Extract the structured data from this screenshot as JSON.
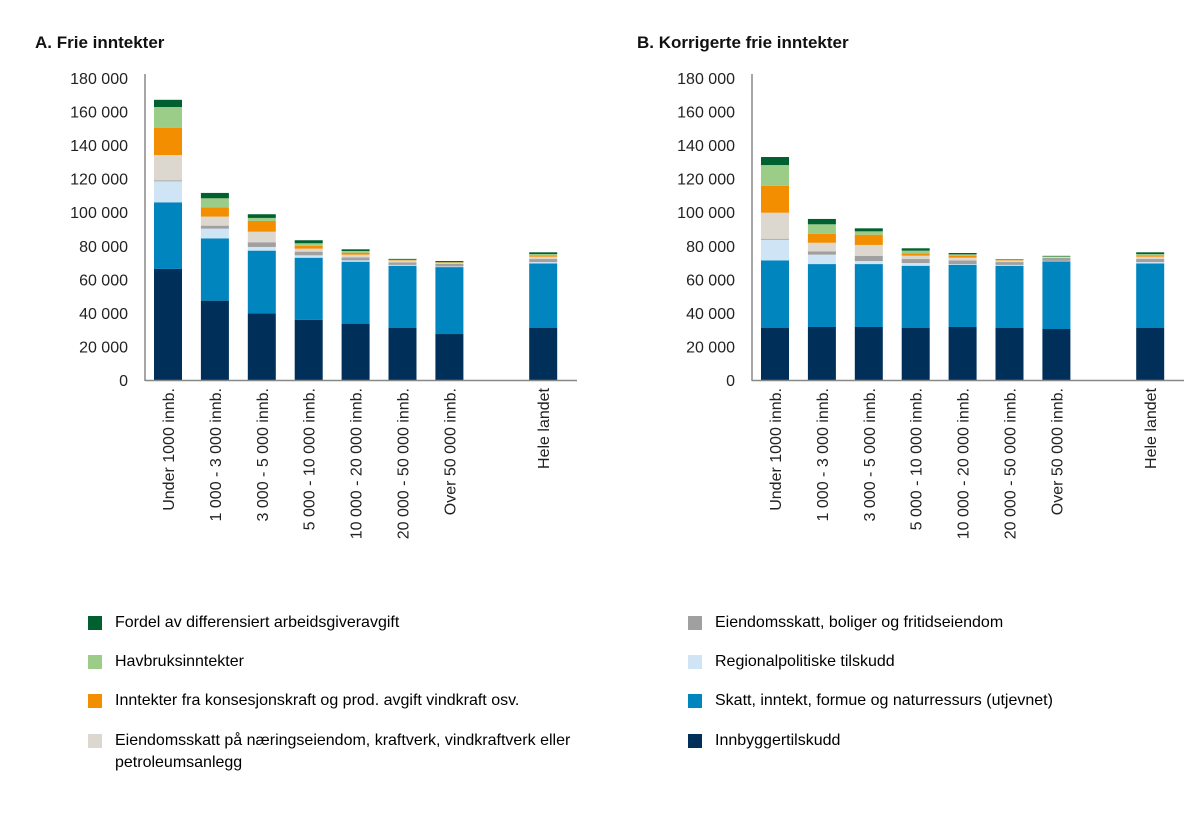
{
  "chart_data": [
    {
      "type": "bar",
      "stacked": true,
      "title": "A.  Frie inntekter",
      "ylim": [
        0,
        180000
      ],
      "yticks": [
        "0",
        "20 000",
        "40 000",
        "60 000",
        "80 000",
        "100 000",
        "120 000",
        "140 000",
        "160 000",
        "180 000"
      ],
      "categories": [
        "Under 1000 innb.",
        "1 000 - 3 000 innb.",
        "3 000 - 5 000 innb.",
        "5 000 - 10 000 innb.",
        "10 000 - 20 000 innb.",
        "20 000 - 50 000 innb.",
        "Over 50 000 innb.",
        "",
        "Hele landet"
      ],
      "series": [
        {
          "name": "Innbyggertilskudd",
          "values": [
            66200,
            47300,
            39700,
            35800,
            33600,
            31000,
            27400,
            null,
            31000
          ]
        },
        {
          "name": "Skatt, inntekt, formue og naturressurs (utjevnet)",
          "values": [
            39700,
            37100,
            37400,
            37100,
            36900,
            37100,
            39900,
            null,
            38500
          ]
        },
        {
          "name": "Regionalpolitiske tilskudd",
          "values": [
            12500,
            5800,
            2200,
            1400,
            800,
            500,
            400,
            null,
            800
          ]
        },
        {
          "name": "Eiendomsskatt, boliger og fritidseiendom",
          "values": [
            600,
            1800,
            2800,
            2200,
            1800,
            1500,
            1600,
            null,
            1800
          ]
        },
        {
          "name": "Eiendomsskatt på næringseiendom, kraftverk, vindkraftverk eller petroleumsanlegg",
          "values": [
            15100,
            5400,
            6300,
            1800,
            1600,
            1000,
            700,
            null,
            1400
          ]
        },
        {
          "name": "Inntekter fra konsesjonskraft og prod. avgift vindkraft osv.",
          "values": [
            16300,
            5500,
            6400,
            1700,
            1200,
            300,
            100,
            null,
            800
          ]
        },
        {
          "name": "Havbruksinntekter",
          "values": [
            12300,
            5400,
            1800,
            1500,
            1000,
            300,
            200,
            null,
            800
          ]
        },
        {
          "name": "Fordel av differensiert arbeidsgiveravgift",
          "values": [
            4300,
            3200,
            2200,
            1800,
            1000,
            500,
            600,
            null,
            1000
          ]
        }
      ]
    },
    {
      "type": "bar",
      "stacked": true,
      "title": "B.  Korrigerte frie inntekter",
      "ylim": [
        0,
        180000
      ],
      "yticks": [
        "0",
        "20 000",
        "40 000",
        "60 000",
        "80 000",
        "100 000",
        "120 000",
        "140 000",
        "160 000",
        "180 000"
      ],
      "categories": [
        "Under 1000 innb.",
        "1 000 - 3 000 innb.",
        "3 000 - 5 000 innb.",
        "5 000 - 10 000 innb.",
        "10 000 - 20 000 innb.",
        "20 000 - 50 000 innb.",
        "Over 50 000 innb.",
        "",
        "Hele landet"
      ],
      "series": [
        {
          "name": "Innbyggertilskudd",
          "values": [
            31200,
            31600,
            31600,
            31000,
            31600,
            31000,
            30400,
            null,
            31000
          ]
        },
        {
          "name": "Skatt, inntekt, formue og naturressurs (utjevnet)",
          "values": [
            40100,
            37500,
            37500,
            37100,
            37100,
            37100,
            40300,
            null,
            38500
          ]
        },
        {
          "name": "Regionalpolitiske tilskudd",
          "values": [
            12300,
            5600,
            1800,
            1600,
            400,
            500,
            300,
            null,
            800
          ]
        },
        {
          "name": "Eiendomsskatt, boliger og fritidseiendom",
          "values": [
            600,
            2000,
            3000,
            2400,
            2200,
            1700,
            1700,
            null,
            1800
          ]
        },
        {
          "name": "Eiendomsskatt på næringseiendom, kraftverk, vindkraftverk eller petroleumsanlegg",
          "values": [
            15500,
            5100,
            6600,
            2000,
            1600,
            800,
            600,
            null,
            1400
          ]
        },
        {
          "name": "Inntekter fra konsesjonskraft og prod. avgift vindkraft osv.",
          "values": [
            16100,
            5400,
            6100,
            1400,
            1200,
            300,
            0,
            null,
            800
          ]
        },
        {
          "name": "Havbruksinntekter",
          "values": [
            12300,
            5600,
            2000,
            1600,
            800,
            300,
            600,
            null,
            800
          ]
        },
        {
          "name": "Fordel av differensiert arbeidsgiveravgift",
          "values": [
            4800,
            3200,
            1800,
            1400,
            800,
            300,
            100,
            null,
            1000
          ]
        }
      ]
    }
  ],
  "colors": [
    "#00305a",
    "#0085bf",
    "#cfe5f5",
    "#a0a0a0",
    "#dcd8d0",
    "#f28e00",
    "#9ccd88",
    "#00602f"
  ],
  "legend": {
    "left": [
      {
        "label": "Fordel av differensiert arbeidsgiveravgift",
        "color": "#00602f"
      },
      {
        "label": "Havbruksinntekter",
        "color": "#9ccd88"
      },
      {
        "label": "Inntekter fra konsesjonskraft og prod. avgift vindkraft osv.",
        "color": "#f28e00"
      },
      {
        "label": "Eiendomsskatt på næringseiendom, kraftverk, vindkraftverk eller petroleumsanlegg",
        "color": "#dcd8d0"
      }
    ],
    "right": [
      {
        "label": "Eiendomsskatt, boliger og fritidseiendom",
        "color": "#a0a0a0"
      },
      {
        "label": "Regionalpolitiske tilskudd",
        "color": "#cfe5f5"
      },
      {
        "label": "Skatt, inntekt, formue og naturressurs (utjevnet)",
        "color": "#0085bf"
      },
      {
        "label": "Innbyggertilskudd",
        "color": "#00305a"
      }
    ]
  }
}
